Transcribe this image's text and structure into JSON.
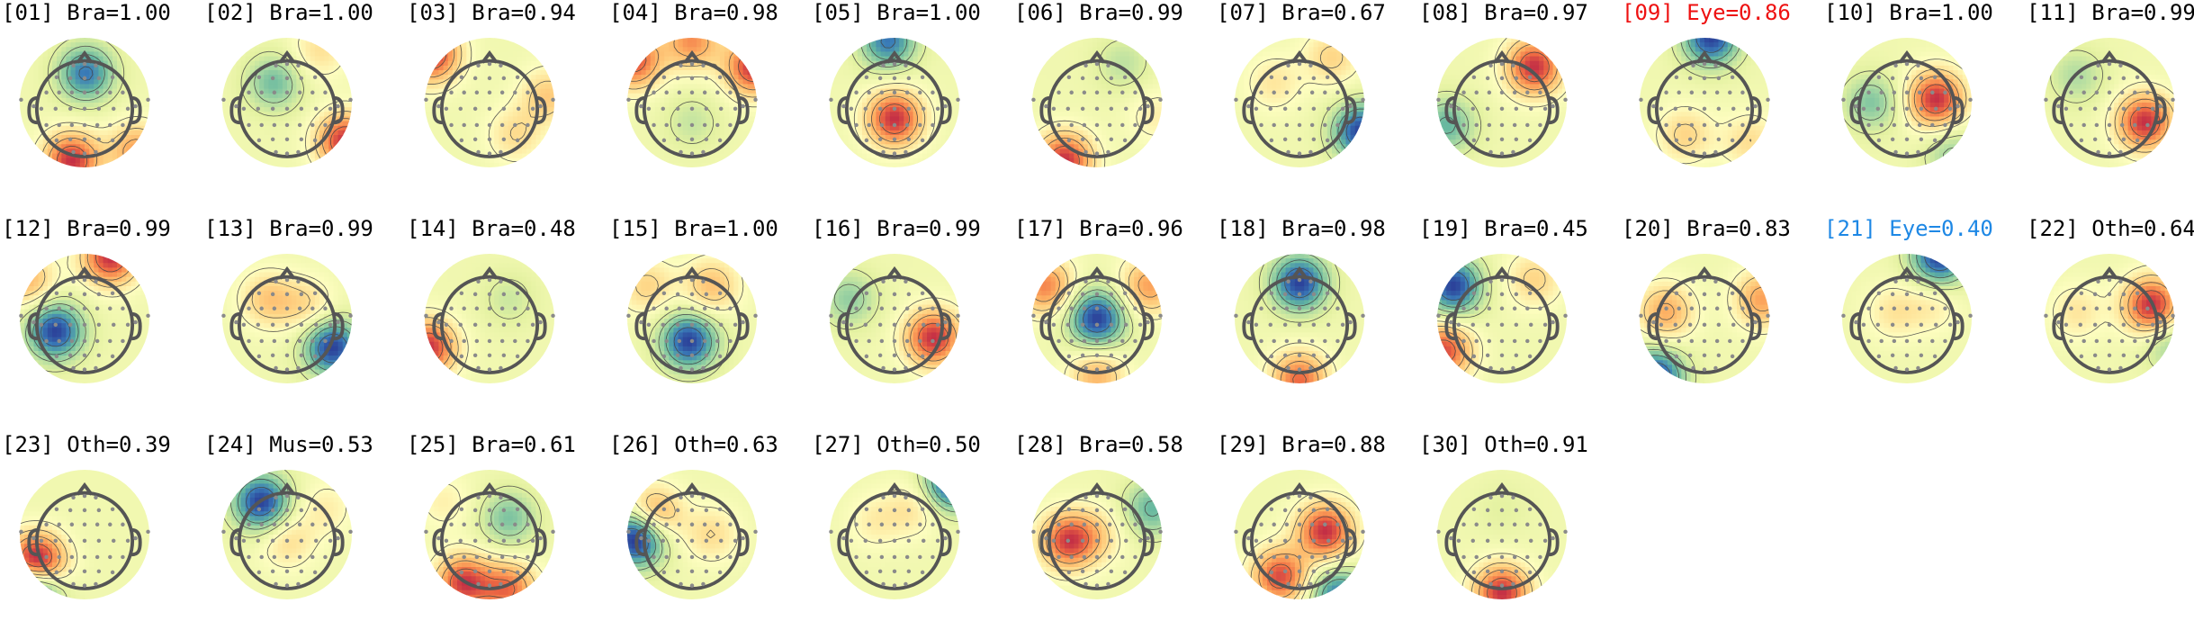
{
  "chart_data": {
    "type": "topomap-grid",
    "colors": {
      "label_default": "#000000",
      "label_eye_high": "#ee1111",
      "label_eye_low": "#1e88e5",
      "colormap": [
        "#2b3f98",
        "#3a7cb8",
        "#62b5a0",
        "#a7d8a2",
        "#e3f1a0",
        "#fefec0",
        "#fed98a",
        "#fdae61",
        "#f06d43",
        "#c22d45"
      ],
      "head_outline": "#555555",
      "contour": "#444444",
      "sensor": "#8a8a8a"
    },
    "components": [
      {
        "label": "[01] Bra=1.00",
        "class": "Bra",
        "score": 1.0,
        "sources": [
          {
            "x": 0.02,
            "y": 0.45,
            "a": -0.8
          },
          {
            "x": -0.2,
            "y": -0.9,
            "a": 1.0
          },
          {
            "x": 0.8,
            "y": -0.75,
            "a": 0.6
          }
        ]
      },
      {
        "label": "[02] Bra=1.00",
        "class": "Bra",
        "score": 1.0,
        "sources": [
          {
            "x": -0.2,
            "y": 0.3,
            "a": -0.35
          },
          {
            "x": 0.9,
            "y": -0.6,
            "a": 0.7
          },
          {
            "x": 0.5,
            "y": 0.8,
            "a": 0.2
          }
        ]
      },
      {
        "label": "[03] Bra=0.94",
        "class": "Bra",
        "score": 0.94,
        "sources": [
          {
            "x": -0.9,
            "y": 0.75,
            "a": 1.0
          },
          {
            "x": 0.4,
            "y": -0.5,
            "a": 0.3
          },
          {
            "x": 0.9,
            "y": 0.1,
            "a": 0.4
          }
        ]
      },
      {
        "label": "[04] Bra=0.98",
        "class": "Bra",
        "score": 0.98,
        "sources": [
          {
            "x": -0.9,
            "y": 0.65,
            "a": 0.8
          },
          {
            "x": 0.95,
            "y": 0.55,
            "a": 0.9
          },
          {
            "x": 0.0,
            "y": 0.95,
            "a": 0.6
          },
          {
            "x": 0.0,
            "y": -0.3,
            "a": -0.2
          }
        ]
      },
      {
        "label": "[05] Bra=1.00",
        "class": "Bra",
        "score": 1.0,
        "sources": [
          {
            "x": 0.0,
            "y": -0.25,
            "a": 1.0
          },
          {
            "x": -0.1,
            "y": 0.95,
            "a": -0.8
          }
        ]
      },
      {
        "label": "[06] Bra=0.99",
        "class": "Bra",
        "score": 0.99,
        "sources": [
          {
            "x": -0.5,
            "y": -0.9,
            "a": 1.0
          },
          {
            "x": 0.4,
            "y": 0.6,
            "a": -0.25
          },
          {
            "x": 0.9,
            "y": -0.2,
            "a": 0.2
          }
        ]
      },
      {
        "label": "[07] Bra=0.67",
        "class": "Bra",
        "score": 0.67,
        "sources": [
          {
            "x": 0.95,
            "y": -0.45,
            "a": -1.0
          },
          {
            "x": -0.4,
            "y": 0.3,
            "a": 0.25
          },
          {
            "x": 0.5,
            "y": 0.7,
            "a": 0.35
          }
        ]
      },
      {
        "label": "[08] Bra=0.97",
        "class": "Bra",
        "score": 0.97,
        "sources": [
          {
            "x": 0.5,
            "y": 0.55,
            "a": 1.0
          },
          {
            "x": -0.85,
            "y": -0.35,
            "a": -0.55
          }
        ]
      },
      {
        "label": "[09] Eye=0.86",
        "class": "Eye",
        "score": 0.86,
        "sources": [
          {
            "x": 0.1,
            "y": 1.0,
            "a": -1.0
          },
          {
            "x": -0.3,
            "y": -0.5,
            "a": 0.35
          },
          {
            "x": 0.7,
            "y": -0.6,
            "a": 0.3
          }
        ]
      },
      {
        "label": "[10] Bra=1.00",
        "class": "Bra",
        "score": 1.0,
        "sources": [
          {
            "x": 0.45,
            "y": 0.05,
            "a": 1.0
          },
          {
            "x": -0.55,
            "y": 0.0,
            "a": -0.45
          },
          {
            "x": 0.7,
            "y": -0.8,
            "a": -0.35
          }
        ]
      },
      {
        "label": "[11] Bra=0.99",
        "class": "Bra",
        "score": 0.99,
        "sources": [
          {
            "x": 0.55,
            "y": -0.3,
            "a": 1.0
          },
          {
            "x": -0.5,
            "y": 0.4,
            "a": -0.3
          }
        ]
      },
      {
        "label": "[12] Bra=0.99",
        "class": "Bra",
        "score": 0.99,
        "sources": [
          {
            "x": -0.45,
            "y": -0.2,
            "a": -1.0
          },
          {
            "x": 0.4,
            "y": 0.95,
            "a": 1.0
          },
          {
            "x": -0.9,
            "y": 0.6,
            "a": 0.5
          }
        ]
      },
      {
        "label": "[13] Bra=0.99",
        "class": "Bra",
        "score": 0.99,
        "sources": [
          {
            "x": 0.7,
            "y": -0.45,
            "a": -1.0
          },
          {
            "x": -0.3,
            "y": 0.3,
            "a": 0.4
          },
          {
            "x": 0.3,
            "y": 0.2,
            "a": 0.3
          }
        ]
      },
      {
        "label": "[14] Bra=0.48",
        "class": "Bra",
        "score": 0.48,
        "sources": [
          {
            "x": -0.95,
            "y": -0.45,
            "a": 1.0
          },
          {
            "x": 0.3,
            "y": 0.3,
            "a": -0.2
          }
        ]
      },
      {
        "label": "[15] Bra=1.00",
        "class": "Bra",
        "score": 1.0,
        "sources": [
          {
            "x": -0.05,
            "y": -0.35,
            "a": -1.0
          },
          {
            "x": 0.3,
            "y": 0.5,
            "a": 0.45
          },
          {
            "x": -0.7,
            "y": 0.5,
            "a": 0.35
          }
        ]
      },
      {
        "label": "[16] Bra=0.99",
        "class": "Bra",
        "score": 0.99,
        "sources": [
          {
            "x": 0.6,
            "y": -0.3,
            "a": 1.0
          },
          {
            "x": -0.7,
            "y": 0.3,
            "a": -0.4
          }
        ]
      },
      {
        "label": "[17] Bra=0.96",
        "class": "Bra",
        "score": 0.96,
        "sources": [
          {
            "x": 0.0,
            "y": 0.0,
            "a": -1.0
          },
          {
            "x": -0.8,
            "y": 0.5,
            "a": 0.7
          },
          {
            "x": 0.8,
            "y": 0.5,
            "a": 0.6
          },
          {
            "x": 0.0,
            "y": -0.9,
            "a": 0.5
          }
        ]
      },
      {
        "label": "[18] Bra=0.98",
        "class": "Bra",
        "score": 0.98,
        "sources": [
          {
            "x": 0.0,
            "y": 0.55,
            "a": -1.0
          },
          {
            "x": 0.0,
            "y": -0.95,
            "a": 0.8
          }
        ]
      },
      {
        "label": "[19] Bra=0.45",
        "class": "Bra",
        "score": 0.45,
        "sources": [
          {
            "x": -0.75,
            "y": 0.5,
            "a": -1.0
          },
          {
            "x": -0.9,
            "y": -0.5,
            "a": 0.9
          },
          {
            "x": 0.5,
            "y": 0.6,
            "a": 0.35
          }
        ]
      },
      {
        "label": "[20] Bra=0.83",
        "class": "Bra",
        "score": 0.83,
        "sources": [
          {
            "x": -0.75,
            "y": -0.9,
            "a": -1.0
          },
          {
            "x": -0.6,
            "y": 0.1,
            "a": 0.55
          },
          {
            "x": 0.9,
            "y": 0.3,
            "a": 0.6
          }
        ]
      },
      {
        "label": "[21] Eye=0.40",
        "class": "Eye",
        "score": 0.4,
        "sources": [
          {
            "x": 0.5,
            "y": 0.95,
            "a": -1.0
          },
          {
            "x": -0.2,
            "y": 0.1,
            "a": 0.25
          },
          {
            "x": 0.4,
            "y": 0.2,
            "a": 0.2
          }
        ]
      },
      {
        "label": "[22] Oth=0.64",
        "class": "Oth",
        "score": 0.64,
        "sources": [
          {
            "x": 0.65,
            "y": 0.2,
            "a": 1.0
          },
          {
            "x": 0.95,
            "y": -0.4,
            "a": -0.35
          },
          {
            "x": -0.5,
            "y": 0.1,
            "a": 0.25
          }
        ]
      },
      {
        "label": "[23] Oth=0.39",
        "class": "Oth",
        "score": 0.39,
        "sources": [
          {
            "x": -0.75,
            "y": -0.45,
            "a": 1.0
          },
          {
            "x": -0.8,
            "y": -0.8,
            "a": -0.8
          }
        ]
      },
      {
        "label": "[24] Mus=0.53",
        "class": "Mus",
        "score": 0.53,
        "sources": [
          {
            "x": -0.4,
            "y": 0.5,
            "a": -1.0
          },
          {
            "x": 0.0,
            "y": -0.1,
            "a": 0.3
          },
          {
            "x": 0.6,
            "y": 0.4,
            "a": 0.2
          }
        ]
      },
      {
        "label": "[25] Bra=0.61",
        "class": "Bra",
        "score": 0.61,
        "sources": [
          {
            "x": -0.4,
            "y": -0.75,
            "a": 1.0
          },
          {
            "x": 0.3,
            "y": 0.25,
            "a": -0.5
          },
          {
            "x": 0.3,
            "y": -0.85,
            "a": 0.8
          },
          {
            "x": -0.7,
            "y": 0.5,
            "a": 0.2
          }
        ]
      },
      {
        "label": "[26] Oth=0.63",
        "class": "Oth",
        "score": 0.63,
        "sources": [
          {
            "x": -0.85,
            "y": -0.05,
            "a": -1.0
          },
          {
            "x": -0.6,
            "y": 0.3,
            "a": 0.55
          },
          {
            "x": 0.3,
            "y": 0.0,
            "a": 0.25
          }
        ]
      },
      {
        "label": "[27] Oth=0.50",
        "class": "Oth",
        "score": 0.5,
        "sources": [
          {
            "x": 0.9,
            "y": 0.8,
            "a": -1.0
          },
          {
            "x": -0.3,
            "y": 0.2,
            "a": 0.2
          },
          {
            "x": 0.3,
            "y": 0.4,
            "a": 0.25
          }
        ]
      },
      {
        "label": "[28] Bra=0.58",
        "class": "Bra",
        "score": 0.58,
        "sources": [
          {
            "x": -0.45,
            "y": -0.1,
            "a": 1.0
          },
          {
            "x": 0.85,
            "y": 0.4,
            "a": -0.6
          },
          {
            "x": 0.0,
            "y": 0.0,
            "a": 0.3
          }
        ]
      },
      {
        "label": "[29] Bra=0.88",
        "class": "Bra",
        "score": 0.88,
        "sources": [
          {
            "x": 0.4,
            "y": 0.05,
            "a": 1.0
          },
          {
            "x": -0.3,
            "y": -0.65,
            "a": 0.9
          },
          {
            "x": 0.6,
            "y": -0.95,
            "a": -0.8
          }
        ]
      },
      {
        "label": "[30] Oth=0.91",
        "class": "Oth",
        "score": 0.91,
        "sources": [
          {
            "x": 0.0,
            "y": -0.9,
            "a": 1.0
          },
          {
            "x": 0.0,
            "y": 0.4,
            "a": -0.1
          }
        ]
      }
    ]
  }
}
